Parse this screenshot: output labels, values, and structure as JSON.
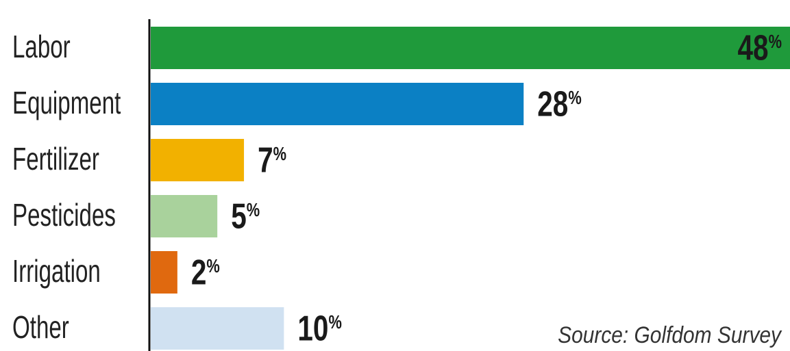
{
  "chart_data": {
    "type": "hbar",
    "categories": [
      "Labor",
      "Equipment",
      "Fertilizer",
      "Pesticides",
      "Irrigation",
      "Other"
    ],
    "values": [
      48,
      28,
      7,
      5,
      2,
      10
    ],
    "value_labels": [
      "48%",
      "28%",
      "7%",
      "5%",
      "2%",
      "10%"
    ],
    "colors": [
      "#1f9a3b",
      "#0b80c4",
      "#f2b100",
      "#a9d29c",
      "#e0690f",
      "#d0e1f1"
    ],
    "source": "Source: Golfdom Survey"
  }
}
